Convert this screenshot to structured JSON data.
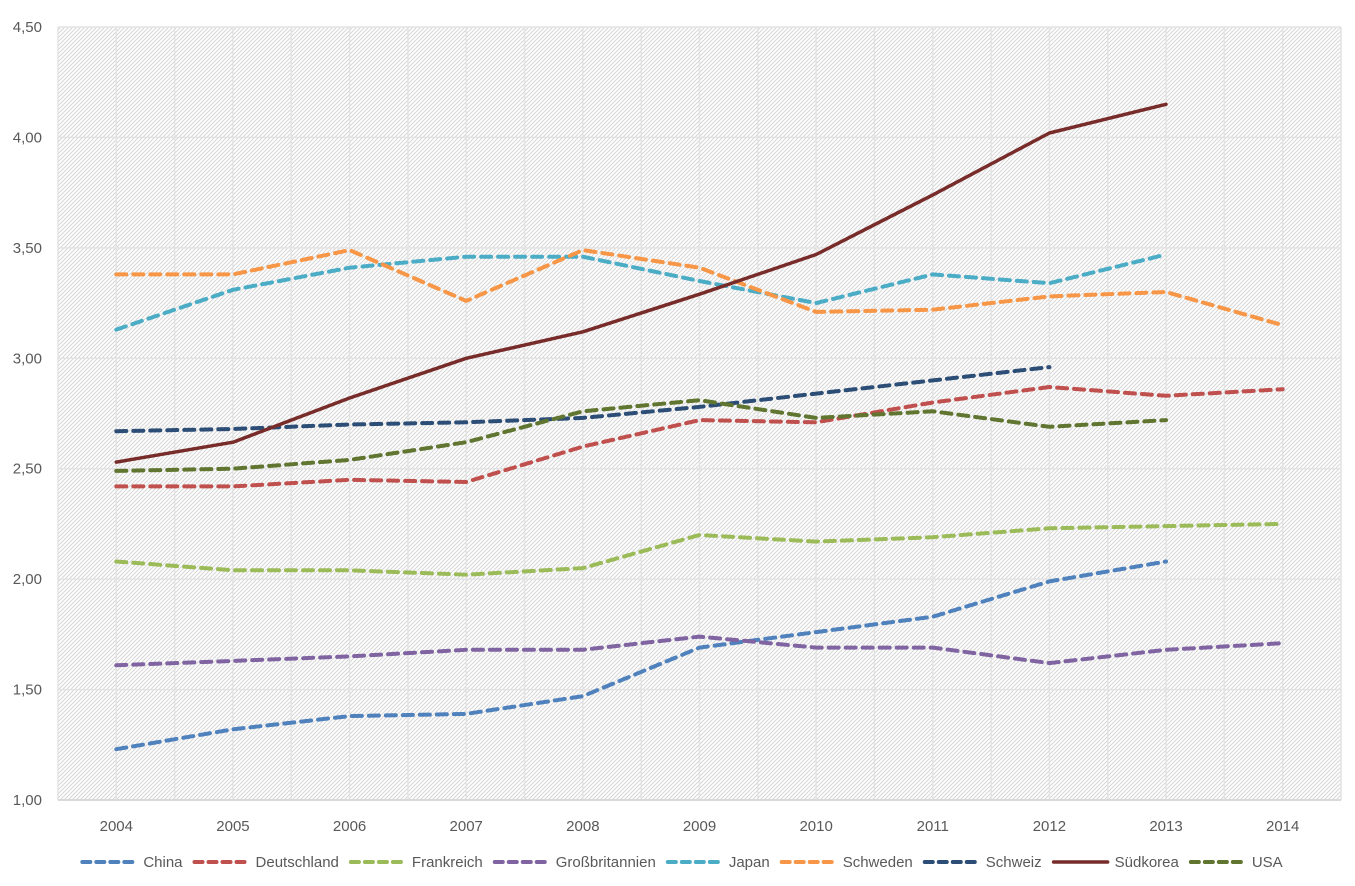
{
  "chart_data": {
    "type": "line",
    "title": "",
    "xlabel": "",
    "ylabel": "",
    "categories": [
      "2004",
      "2005",
      "2006",
      "2007",
      "2008",
      "2009",
      "2010",
      "2011",
      "2012",
      "2013",
      "2014"
    ],
    "ylim": [
      1.0,
      4.5
    ],
    "yticks": [
      1.0,
      1.5,
      2.0,
      2.5,
      3.0,
      3.5,
      4.0,
      4.5
    ],
    "ytick_labels": [
      "1,00",
      "1,50",
      "2,00",
      "2,50",
      "3,00",
      "3,50",
      "4,00",
      "4,50"
    ],
    "grid": true,
    "legend_position": "bottom",
    "series": [
      {
        "name": "China",
        "color": "#4f81bd",
        "dashed": true,
        "values": [
          1.23,
          1.32,
          1.38,
          1.39,
          1.47,
          1.69,
          1.76,
          1.83,
          1.99,
          2.08,
          null
        ]
      },
      {
        "name": "Deutschland",
        "color": "#c0504d",
        "dashed": true,
        "values": [
          2.42,
          2.42,
          2.45,
          2.44,
          2.6,
          2.72,
          2.71,
          2.8,
          2.87,
          2.83,
          2.86
        ]
      },
      {
        "name": "Frankreich",
        "color": "#9bbb59",
        "dashed": true,
        "values": [
          2.08,
          2.04,
          2.04,
          2.02,
          2.05,
          2.2,
          2.17,
          2.19,
          2.23,
          2.24,
          2.25
        ]
      },
      {
        "name": "Großbritannien",
        "color": "#8064a2",
        "dashed": true,
        "values": [
          1.61,
          1.63,
          1.65,
          1.68,
          1.68,
          1.74,
          1.69,
          1.69,
          1.62,
          1.68,
          1.71
        ]
      },
      {
        "name": "Japan",
        "color": "#4bacc6",
        "dashed": true,
        "values": [
          3.13,
          3.31,
          3.41,
          3.46,
          3.46,
          3.35,
          3.25,
          3.38,
          3.34,
          3.47,
          null
        ]
      },
      {
        "name": "Schweden",
        "color": "#f79646",
        "dashed": true,
        "values": [
          3.38,
          3.38,
          3.49,
          3.26,
          3.49,
          3.41,
          3.21,
          3.22,
          3.28,
          3.3,
          3.15
        ]
      },
      {
        "name": "Schweiz",
        "color": "#2c4d75",
        "dashed": true,
        "values": [
          2.67,
          2.68,
          2.7,
          2.71,
          2.73,
          2.78,
          2.84,
          2.9,
          2.96,
          null,
          null
        ]
      },
      {
        "name": "Südkorea",
        "color": "#772c2a",
        "dashed": false,
        "values": [
          2.53,
          2.62,
          2.82,
          3.0,
          3.12,
          3.29,
          3.47,
          3.74,
          4.02,
          4.15,
          null
        ]
      },
      {
        "name": "USA",
        "color": "#5f7530",
        "dashed": true,
        "values": [
          2.49,
          2.5,
          2.54,
          2.62,
          2.76,
          2.81,
          2.73,
          2.76,
          2.69,
          2.72,
          null
        ]
      }
    ]
  }
}
